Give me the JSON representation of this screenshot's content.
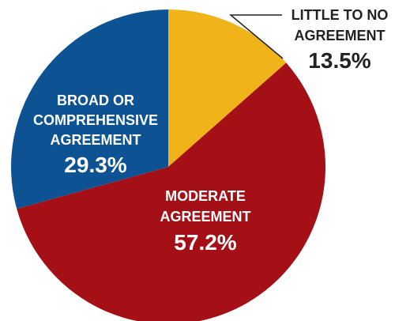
{
  "chart_data": {
    "type": "pie",
    "slices": [
      {
        "label_lines": [
          "LITTLE TO NO",
          "AGREEMENT"
        ],
        "value": 13.5,
        "value_label": "13.5%",
        "color": "#F0B41A"
      },
      {
        "label_lines": [
          "MODERATE",
          "AGREEMENT"
        ],
        "value": 57.2,
        "value_label": "57.2%",
        "color": "#A51016"
      },
      {
        "label_lines": [
          "BROAD OR",
          "COMPREHENSIVE",
          "AGREEMENT"
        ],
        "value": 29.3,
        "value_label": "29.3%",
        "color": "#0D5393"
      }
    ],
    "start_angle": "12 o'clock, clockwise",
    "label_text_colors": {
      "inside": "#FFFFFF",
      "outside": "#222222"
    }
  }
}
